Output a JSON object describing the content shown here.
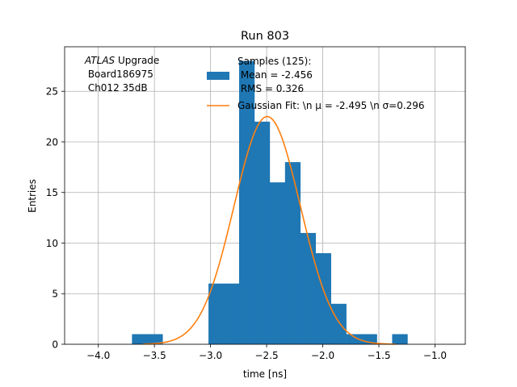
{
  "chart_data": {
    "type": "bar",
    "title": "Run 803",
    "xlabel": "time [ns]",
    "ylabel": "Entries",
    "xlim": [
      -4.3,
      -0.73
    ],
    "ylim": [
      0,
      29.4
    ],
    "grid": true,
    "x_ticks": [
      -4.0,
      -3.5,
      -3.0,
      -2.5,
      -2.0,
      -1.5,
      -1.0
    ],
    "x_tick_labels": [
      "−4.0",
      "−3.5",
      "−3.0",
      "−2.5",
      "−2.0",
      "−1.5",
      "−1.0"
    ],
    "y_ticks": [
      0,
      5,
      10,
      15,
      20,
      25
    ],
    "y_tick_labels": [
      "0",
      "5",
      "10",
      "15",
      "20",
      "25"
    ],
    "bar_color": "#1f77b4",
    "fit_color": "#ff7f0e",
    "histogram": {
      "bin_width": 0.1364,
      "bin_starts": [
        -3.7,
        -3.5636,
        -3.4273,
        -3.2909,
        -3.1545,
        -3.0182,
        -2.8818,
        -2.7455,
        -2.6091,
        -2.4727,
        -2.3364,
        -2.2,
        -2.0636,
        -1.9273,
        -1.7909,
        -1.6545,
        -1.5182,
        -1.3818
      ],
      "counts": [
        1,
        1,
        0,
        0,
        0,
        6,
        6,
        28,
        22,
        16,
        18,
        11,
        9,
        4,
        1,
        1,
        0,
        1
      ]
    },
    "fit": {
      "mu": -2.495,
      "sigma": 0.296,
      "amplitude": 22.5,
      "x_range": [
        -3.6,
        -1.35
      ]
    },
    "annotation": {
      "italic": "ATLAS",
      "rest": " Upgrade",
      "line2": " Board186975",
      "line3": " Ch012 35dB"
    },
    "legend": {
      "position": "top-center",
      "hist_lines": [
        "Samples (125):",
        " Mean = -2.456",
        " RMS = 0.326"
      ],
      "fit_label": "Gaussian Fit: \\n μ = -2.495 \\n σ=0.296"
    }
  }
}
